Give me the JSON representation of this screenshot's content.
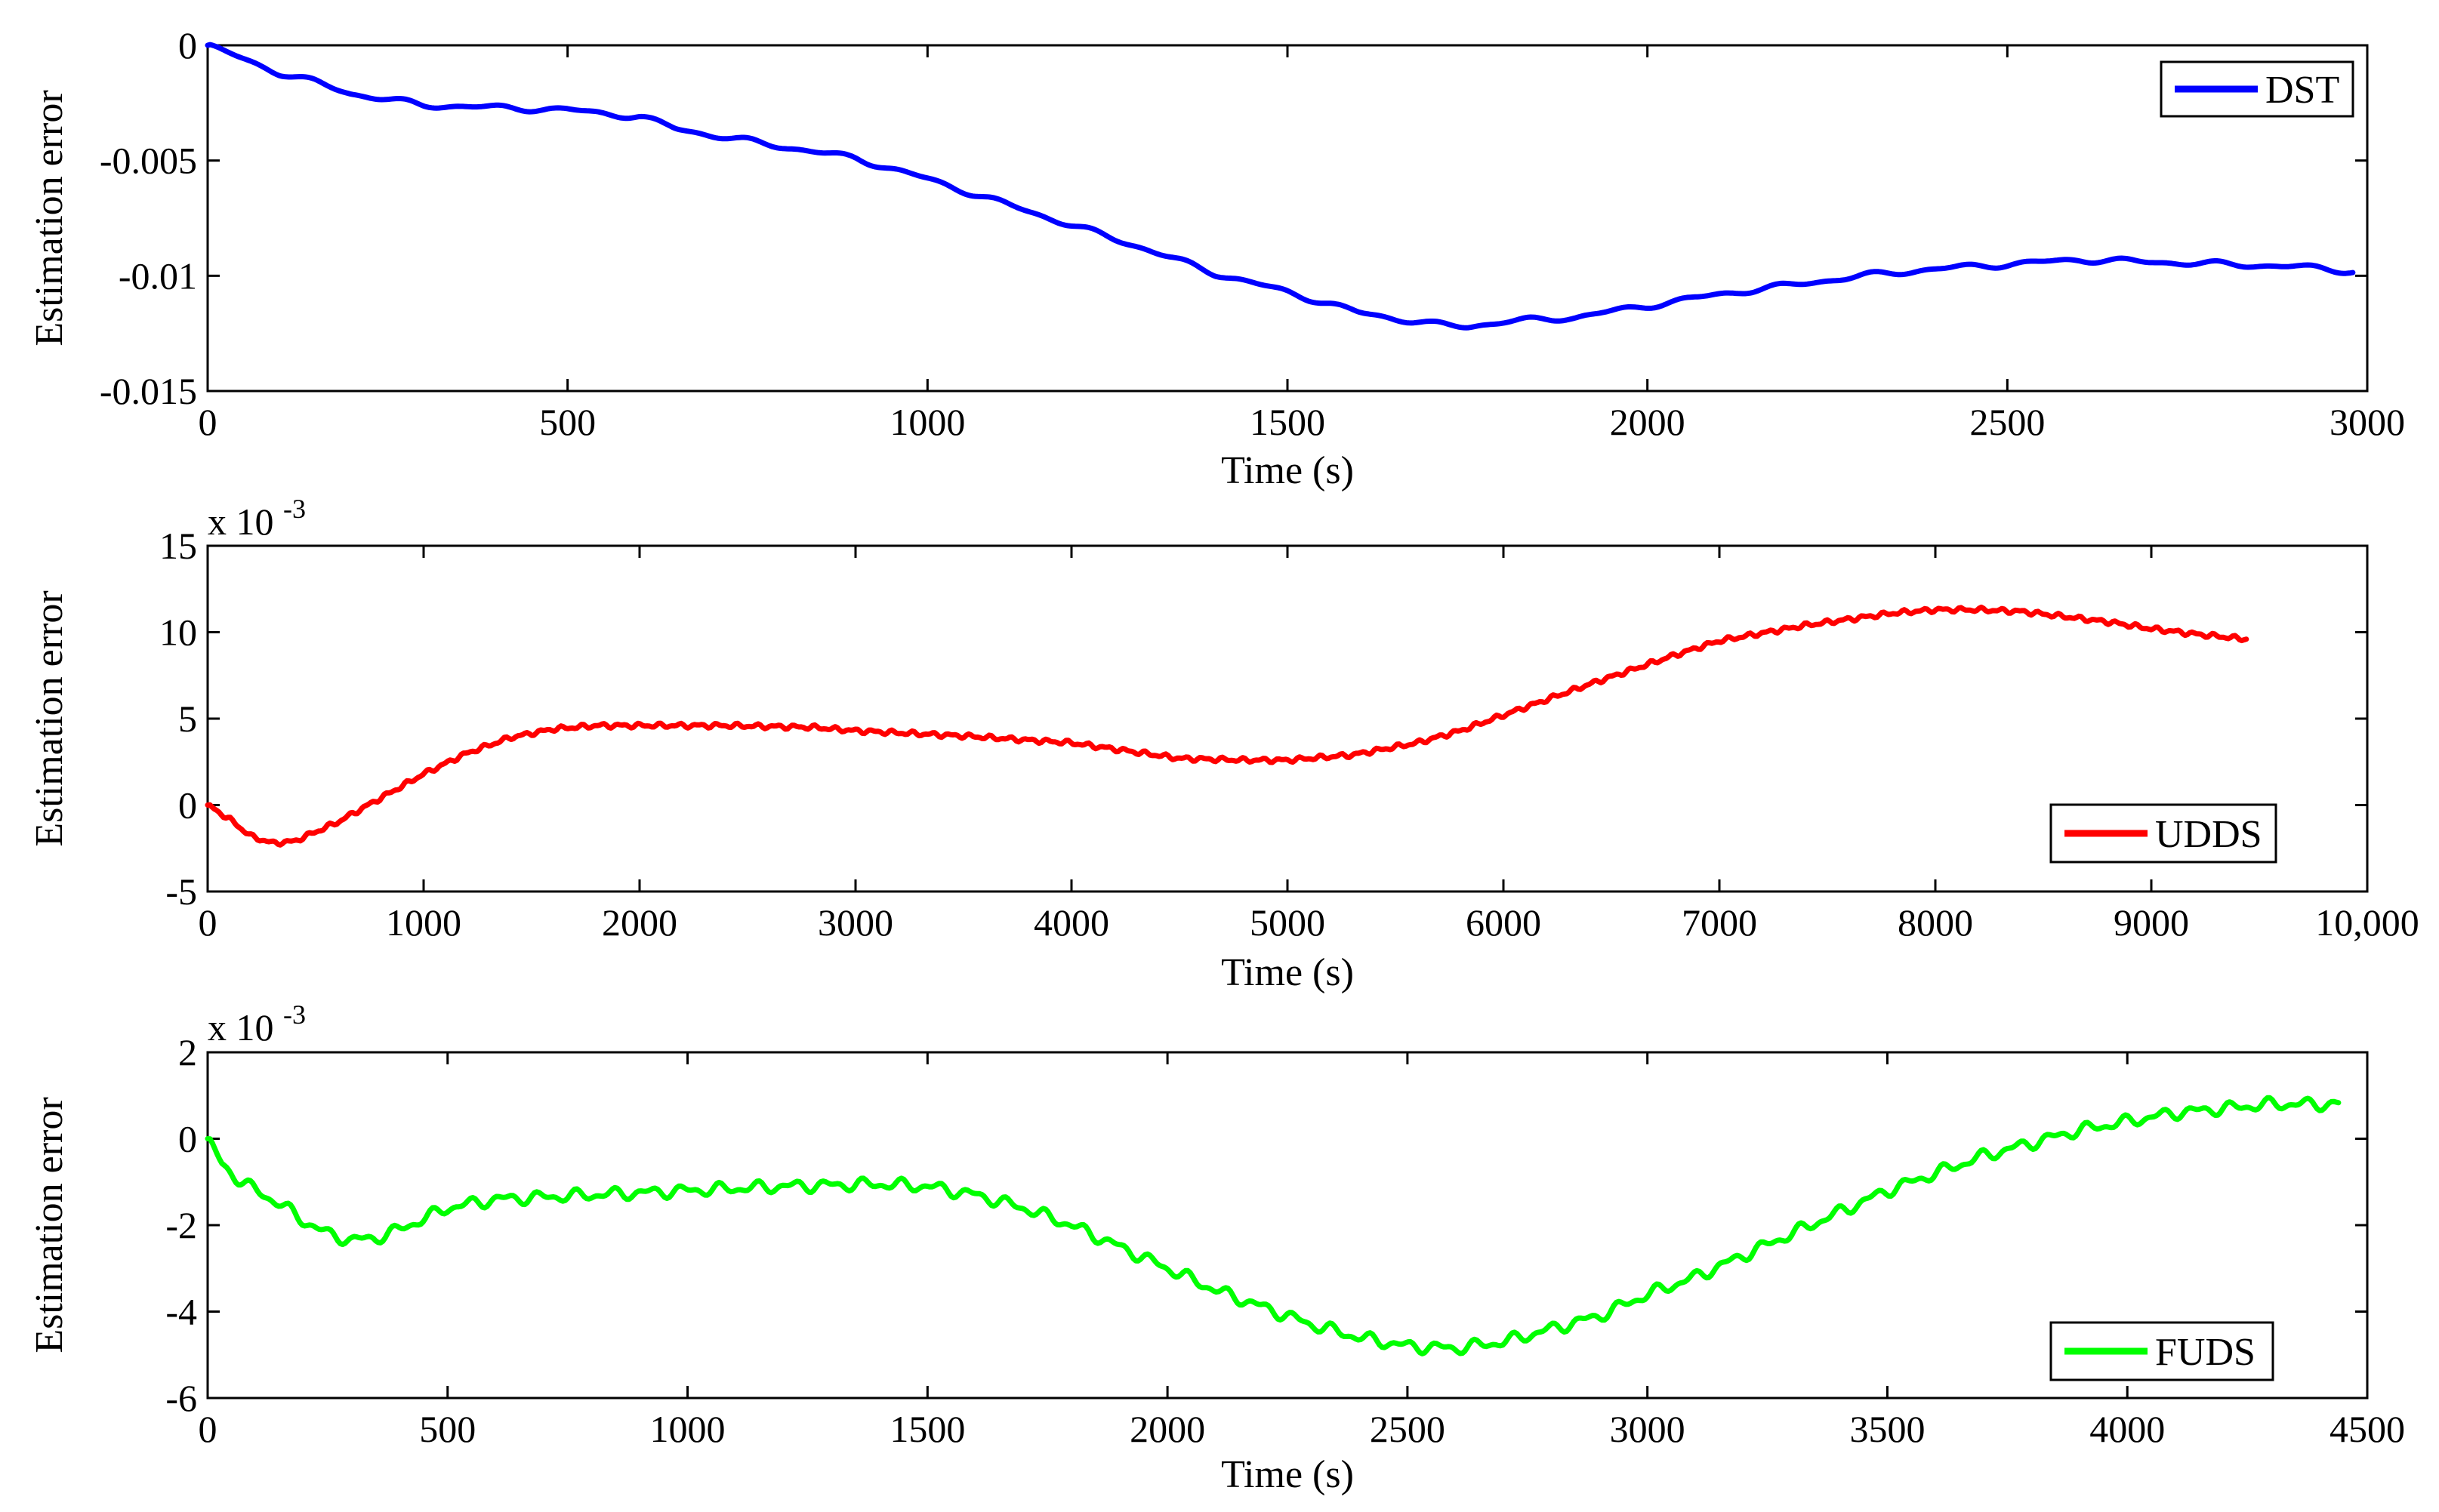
{
  "chart_data": [
    {
      "type": "line",
      "id": "dst",
      "xlabel": "Time (s)",
      "ylabel": "Estimation error",
      "xlim": [
        0,
        3000
      ],
      "ylim": [
        -0.015,
        0
      ],
      "xticks": [
        0,
        500,
        1000,
        1500,
        2000,
        2500,
        3000
      ],
      "xtick_labels": [
        "0",
        "500",
        "1000",
        "1500",
        "2000",
        "2500",
        "3000"
      ],
      "yticks": [
        -0.015,
        -0.01,
        -0.005,
        0
      ],
      "ytick_labels": [
        "-0.015",
        "-0.01",
        "-0.005",
        "0"
      ],
      "exponent_label": "",
      "legend_location": "top-right",
      "series": [
        {
          "name": "DST",
          "color": "#0000ff",
          "ripple": 0.00014,
          "ripple_period": 40,
          "x": [
            0,
            50,
            100,
            150,
            200,
            300,
            400,
            500,
            600,
            650,
            700,
            800,
            900,
            1000,
            1100,
            1200,
            1300,
            1400,
            1500,
            1600,
            1700,
            1750,
            1800,
            1900,
            2000,
            2100,
            2200,
            2300,
            2400,
            2500,
            2600,
            2700,
            2800,
            2900,
            2980
          ],
          "y": [
            0,
            -0.0006,
            -0.0012,
            -0.0016,
            -0.0021,
            -0.0026,
            -0.0027,
            -0.0028,
            -0.0031,
            -0.0036,
            -0.0039,
            -0.0044,
            -0.0049,
            -0.0058,
            -0.0068,
            -0.0078,
            -0.0088,
            -0.0099,
            -0.0107,
            -0.0116,
            -0.0121,
            -0.0122,
            -0.012,
            -0.0118,
            -0.0113,
            -0.0108,
            -0.0104,
            -0.01,
            -0.0097,
            -0.0095,
            -0.0093,
            -0.0094,
            -0.0095,
            -0.0096,
            -0.0098
          ]
        }
      ]
    },
    {
      "type": "line",
      "id": "udds",
      "xlabel": "Time (s)",
      "ylabel": "Estimation error",
      "xlim": [
        0,
        10000
      ],
      "ylim": [
        -5,
        15
      ],
      "xticks": [
        0,
        1000,
        2000,
        3000,
        4000,
        5000,
        6000,
        7000,
        8000,
        9000,
        10000
      ],
      "xtick_labels": [
        "0",
        "1000",
        "2000",
        "3000",
        "4000",
        "5000",
        "6000",
        "7000",
        "8000",
        "9000",
        "10,000"
      ],
      "yticks": [
        -5,
        0,
        5,
        10,
        15
      ],
      "ytick_labels": [
        "-5",
        "0",
        "5",
        "10",
        "15"
      ],
      "exponent_label": "x 10",
      "exponent_power": "-3",
      "legend_location": "bottom-right",
      "series": [
        {
          "name": "UDDS",
          "color": "#ff0000",
          "ripple": 0.15,
          "ripple_period": 30,
          "x": [
            0,
            100,
            200,
            300,
            400,
            600,
            800,
            1000,
            1200,
            1400,
            1600,
            1800,
            2000,
            2400,
            2800,
            3000,
            3500,
            4000,
            4500,
            4800,
            5000,
            5300,
            5600,
            5800,
            6000,
            6400,
            6800,
            7000,
            7400,
            7800,
            8000,
            8200,
            8400,
            8600,
            8800,
            9000,
            9200,
            9440
          ],
          "y": [
            0,
            -0.8,
            -1.8,
            -2.2,
            -2.1,
            -1.0,
            0.4,
            1.8,
            3.0,
            3.9,
            4.4,
            4.6,
            4.6,
            4.6,
            4.5,
            4.3,
            4.0,
            3.6,
            2.7,
            2.6,
            2.6,
            2.9,
            3.6,
            4.3,
            5.2,
            7.0,
            8.7,
            9.5,
            10.4,
            11.1,
            11.3,
            11.3,
            11.2,
            10.9,
            10.6,
            10.2,
            9.9,
            9.6
          ]
        }
      ]
    },
    {
      "type": "line",
      "id": "fuds",
      "xlabel": "Time (s)",
      "ylabel": "Estimation error",
      "xlim": [
        0,
        4500
      ],
      "ylim": [
        -6,
        2
      ],
      "xticks": [
        0,
        500,
        1000,
        1500,
        2000,
        2500,
        3000,
        3500,
        4000,
        4500
      ],
      "xtick_labels": [
        "0",
        "500",
        "1000",
        "1500",
        "2000",
        "2500",
        "3000",
        "3500",
        "4000",
        "4500"
      ],
      "yticks": [
        -6,
        -4,
        -2,
        0,
        2
      ],
      "ytick_labels": [
        "-6",
        "-4",
        "-2",
        "0",
        "2"
      ],
      "exponent_label": "x 10",
      "exponent_power": "-3",
      "legend_location": "bottom-right",
      "series": [
        {
          "name": "FUDS",
          "color": "#00ff00",
          "ripple": 0.16,
          "ripple_period": 25,
          "x": [
            0,
            30,
            60,
            100,
            150,
            200,
            250,
            300,
            350,
            400,
            500,
            600,
            800,
            1000,
            1200,
            1400,
            1500,
            1600,
            1700,
            1800,
            1900,
            2000,
            2100,
            2200,
            2300,
            2400,
            2500,
            2600,
            2700,
            2800,
            2900,
            3000,
            3100,
            3200,
            3300,
            3400,
            3500,
            3600,
            3700,
            3800,
            3900,
            4000,
            4100,
            4200,
            4300,
            4400,
            4440
          ],
          "y": [
            0,
            -0.6,
            -0.9,
            -1.2,
            -1.5,
            -1.9,
            -2.2,
            -2.35,
            -2.3,
            -2.1,
            -1.6,
            -1.4,
            -1.3,
            -1.2,
            -1.1,
            -1.05,
            -1.1,
            -1.3,
            -1.6,
            -2.0,
            -2.5,
            -3.0,
            -3.5,
            -3.9,
            -4.3,
            -4.6,
            -4.8,
            -4.85,
            -4.7,
            -4.4,
            -4.1,
            -3.6,
            -3.2,
            -2.7,
            -2.2,
            -1.7,
            -1.2,
            -0.8,
            -0.4,
            -0.1,
            0.2,
            0.4,
            0.6,
            0.7,
            0.8,
            0.8,
            0.8
          ]
        }
      ]
    }
  ]
}
